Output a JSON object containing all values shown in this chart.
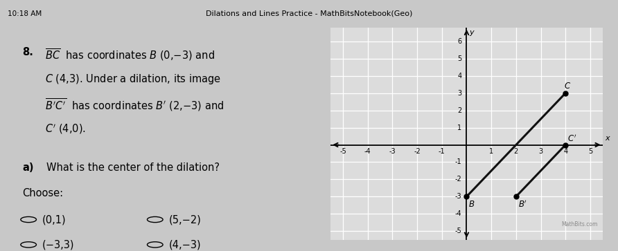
{
  "title": "Dilations and Lines Practice - MathBitsNotebook(Geo)",
  "time_text": "10:18 AM",
  "graph": {
    "xlim": [
      -5.5,
      5.5
    ],
    "ylim": [
      -5.5,
      6.8
    ],
    "xticks": [
      -5,
      -4,
      -3,
      -2,
      -1,
      1,
      2,
      3,
      4,
      5
    ],
    "yticks": [
      -5,
      -4,
      -3,
      -2,
      -1,
      1,
      2,
      3,
      4,
      5,
      6
    ],
    "B": [
      0,
      -3
    ],
    "C": [
      4,
      3
    ],
    "Bp": [
      2,
      -3
    ],
    "Cp": [
      4,
      0
    ],
    "segment_color": "#111111",
    "segment_lw": 2.2,
    "point_size": 5,
    "grid_color": "#cccccc",
    "bg_color": "#dcdcdc",
    "watermark": "MathBits.com"
  },
  "outer_bg": "#c8c8c8",
  "panel_bg": "#f0f0f0",
  "box_bg": "#ffffff"
}
